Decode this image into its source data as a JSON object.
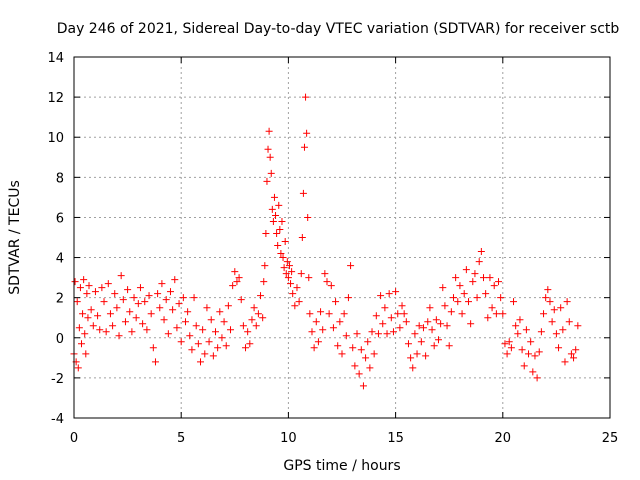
{
  "chart_data": {
    "type": "scatter",
    "title": "Day 246 of 2021, Sidereal Day-to-day VTEC variation (SDTVAR) for receiver sctb",
    "xlabel": "GPS time / hours",
    "ylabel": "SDTVAR / TECUs",
    "xlim": [
      0,
      25
    ],
    "ylim": [
      -4,
      14
    ],
    "xticks": [
      0,
      5,
      10,
      15,
      20,
      25
    ],
    "yticks": [
      -4,
      -2,
      0,
      2,
      4,
      6,
      8,
      10,
      12,
      14
    ],
    "grid": true,
    "marker": "plus",
    "color": "#ff0000",
    "series": [
      {
        "name": "sctb",
        "points": [
          [
            0.0,
            -0.8
          ],
          [
            0.05,
            2.8
          ],
          [
            0.1,
            -1.2
          ],
          [
            0.15,
            1.8
          ],
          [
            0.2,
            -1.5
          ],
          [
            0.25,
            0.5
          ],
          [
            0.3,
            2.5
          ],
          [
            0.35,
            -0.3
          ],
          [
            0.4,
            1.2
          ],
          [
            0.45,
            2.9
          ],
          [
            0.5,
            0.2
          ],
          [
            0.55,
            -0.8
          ],
          [
            0.6,
            2.2
          ],
          [
            0.65,
            1.0
          ],
          [
            0.7,
            2.6
          ],
          [
            0.8,
            1.4
          ],
          [
            0.9,
            0.6
          ],
          [
            1.0,
            2.3
          ],
          [
            1.1,
            1.1
          ],
          [
            1.2,
            0.4
          ],
          [
            1.3,
            2.5
          ],
          [
            1.4,
            1.8
          ],
          [
            1.5,
            0.3
          ],
          [
            1.6,
            2.7
          ],
          [
            1.7,
            1.2
          ],
          [
            1.8,
            0.6
          ],
          [
            1.9,
            2.2
          ],
          [
            2.0,
            1.5
          ],
          [
            2.1,
            0.1
          ],
          [
            2.2,
            3.1
          ],
          [
            2.3,
            1.9
          ],
          [
            2.4,
            0.8
          ],
          [
            2.5,
            2.4
          ],
          [
            2.6,
            1.3
          ],
          [
            2.7,
            0.3
          ],
          [
            2.8,
            2.0
          ],
          [
            2.9,
            1.0
          ],
          [
            3.0,
            1.7
          ],
          [
            3.1,
            2.5
          ],
          [
            3.2,
            0.7
          ],
          [
            3.3,
            1.8
          ],
          [
            3.4,
            0.4
          ],
          [
            3.5,
            2.1
          ],
          [
            3.6,
            1.2
          ],
          [
            3.7,
            -0.5
          ],
          [
            3.8,
            -1.2
          ],
          [
            3.9,
            2.2
          ],
          [
            4.0,
            1.5
          ],
          [
            4.1,
            2.7
          ],
          [
            4.2,
            0.9
          ],
          [
            4.3,
            1.9
          ],
          [
            4.4,
            0.2
          ],
          [
            4.5,
            2.3
          ],
          [
            4.6,
            1.4
          ],
          [
            4.7,
            2.9
          ],
          [
            4.8,
            0.5
          ],
          [
            4.9,
            1.7
          ],
          [
            5.0,
            -0.2
          ],
          [
            5.1,
            2.0
          ],
          [
            5.2,
            0.8
          ],
          [
            5.3,
            1.3
          ],
          [
            5.4,
            0.1
          ],
          [
            5.5,
            -0.6
          ],
          [
            5.6,
            2.0
          ],
          [
            5.7,
            0.6
          ],
          [
            5.8,
            -0.3
          ],
          [
            5.9,
            -1.2
          ],
          [
            6.0,
            0.4
          ],
          [
            6.1,
            -0.8
          ],
          [
            6.2,
            1.5
          ],
          [
            6.3,
            -0.2
          ],
          [
            6.4,
            0.9
          ],
          [
            6.5,
            -0.9
          ],
          [
            6.6,
            0.3
          ],
          [
            6.7,
            -0.5
          ],
          [
            6.8,
            1.3
          ],
          [
            6.9,
            0.0
          ],
          [
            7.0,
            0.8
          ],
          [
            7.1,
            -0.4
          ],
          [
            7.2,
            1.6
          ],
          [
            7.3,
            0.4
          ],
          [
            7.4,
            2.6
          ],
          [
            7.5,
            3.3
          ],
          [
            7.6,
            2.8
          ],
          [
            7.7,
            3.0
          ],
          [
            7.8,
            1.9
          ],
          [
            7.9,
            0.6
          ],
          [
            8.0,
            -0.5
          ],
          [
            8.1,
            0.3
          ],
          [
            8.2,
            -0.3
          ],
          [
            8.3,
            0.9
          ],
          [
            8.4,
            1.5
          ],
          [
            8.5,
            0.6
          ],
          [
            8.6,
            1.2
          ],
          [
            8.7,
            2.1
          ],
          [
            8.8,
            1.0
          ],
          [
            8.85,
            2.8
          ],
          [
            8.9,
            3.6
          ],
          [
            8.95,
            5.2
          ],
          [
            9.0,
            7.8
          ],
          [
            9.05,
            9.4
          ],
          [
            9.1,
            10.3
          ],
          [
            9.15,
            9.0
          ],
          [
            9.2,
            8.2
          ],
          [
            9.25,
            6.4
          ],
          [
            9.3,
            5.8
          ],
          [
            9.35,
            7.0
          ],
          [
            9.4,
            6.1
          ],
          [
            9.45,
            5.2
          ],
          [
            9.5,
            4.6
          ],
          [
            9.55,
            6.6
          ],
          [
            9.6,
            5.4
          ],
          [
            9.65,
            4.2
          ],
          [
            9.7,
            5.8
          ],
          [
            9.75,
            4.0
          ],
          [
            9.8,
            3.5
          ],
          [
            9.85,
            4.8
          ],
          [
            9.9,
            3.2
          ],
          [
            9.95,
            3.8
          ],
          [
            10.0,
            3.0
          ],
          [
            10.05,
            3.6
          ],
          [
            10.1,
            2.7
          ],
          [
            10.15,
            3.3
          ],
          [
            10.2,
            2.2
          ],
          [
            10.3,
            1.6
          ],
          [
            10.4,
            2.5
          ],
          [
            10.5,
            1.8
          ],
          [
            10.6,
            3.2
          ],
          [
            10.65,
            5.0
          ],
          [
            10.7,
            7.2
          ],
          [
            10.75,
            9.5
          ],
          [
            10.8,
            12.0
          ],
          [
            10.85,
            10.2
          ],
          [
            10.9,
            6.0
          ],
          [
            10.95,
            3.0
          ],
          [
            11.0,
            1.2
          ],
          [
            11.1,
            0.3
          ],
          [
            11.2,
            -0.5
          ],
          [
            11.3,
            0.8
          ],
          [
            11.4,
            -0.2
          ],
          [
            11.5,
            1.3
          ],
          [
            11.6,
            0.4
          ],
          [
            11.7,
            3.2
          ],
          [
            11.8,
            2.8
          ],
          [
            11.9,
            1.2
          ],
          [
            12.0,
            2.6
          ],
          [
            12.1,
            0.5
          ],
          [
            12.2,
            1.8
          ],
          [
            12.3,
            -0.4
          ],
          [
            12.4,
            0.8
          ],
          [
            12.5,
            -0.8
          ],
          [
            12.6,
            1.2
          ],
          [
            12.7,
            0.1
          ],
          [
            12.8,
            2.0
          ],
          [
            12.9,
            3.6
          ],
          [
            13.0,
            -0.5
          ],
          [
            13.1,
            -1.4
          ],
          [
            13.2,
            0.2
          ],
          [
            13.3,
            -1.8
          ],
          [
            13.4,
            -0.6
          ],
          [
            13.5,
            -2.4
          ],
          [
            13.6,
            -1.0
          ],
          [
            13.7,
            -0.2
          ],
          [
            13.8,
            -1.5
          ],
          [
            13.9,
            0.3
          ],
          [
            14.0,
            -0.8
          ],
          [
            14.1,
            1.1
          ],
          [
            14.2,
            0.2
          ],
          [
            14.3,
            2.1
          ],
          [
            14.4,
            0.7
          ],
          [
            14.5,
            1.5
          ],
          [
            14.6,
            0.2
          ],
          [
            14.7,
            2.2
          ],
          [
            14.8,
            1.0
          ],
          [
            14.9,
            0.3
          ],
          [
            15.0,
            2.3
          ],
          [
            15.1,
            1.2
          ],
          [
            15.2,
            0.5
          ],
          [
            15.3,
            1.6
          ],
          [
            15.4,
            1.2
          ],
          [
            15.5,
            0.8
          ],
          [
            15.6,
            -0.3
          ],
          [
            15.7,
            -1.0
          ],
          [
            15.8,
            -1.5
          ],
          [
            15.9,
            0.2
          ],
          [
            16.0,
            -0.8
          ],
          [
            16.1,
            0.6
          ],
          [
            16.2,
            -0.2
          ],
          [
            16.3,
            0.5
          ],
          [
            16.4,
            -0.9
          ],
          [
            16.5,
            0.8
          ],
          [
            16.6,
            1.5
          ],
          [
            16.7,
            0.4
          ],
          [
            16.8,
            -0.4
          ],
          [
            16.9,
            0.9
          ],
          [
            17.0,
            -0.1
          ],
          [
            17.1,
            0.7
          ],
          [
            17.2,
            2.5
          ],
          [
            17.3,
            1.6
          ],
          [
            17.4,
            0.6
          ],
          [
            17.5,
            -0.4
          ],
          [
            17.6,
            1.3
          ],
          [
            17.7,
            2.0
          ],
          [
            17.8,
            3.0
          ],
          [
            17.9,
            1.8
          ],
          [
            18.0,
            2.6
          ],
          [
            18.1,
            1.2
          ],
          [
            18.2,
            2.2
          ],
          [
            18.3,
            3.4
          ],
          [
            18.4,
            1.8
          ],
          [
            18.5,
            0.7
          ],
          [
            18.6,
            2.8
          ],
          [
            18.7,
            3.2
          ],
          [
            18.8,
            2.0
          ],
          [
            18.9,
            3.8
          ],
          [
            19.0,
            4.3
          ],
          [
            19.1,
            3.0
          ],
          [
            19.2,
            2.2
          ],
          [
            19.3,
            1.0
          ],
          [
            19.4,
            3.0
          ],
          [
            19.5,
            1.5
          ],
          [
            19.6,
            2.6
          ],
          [
            19.7,
            1.2
          ],
          [
            19.8,
            2.8
          ],
          [
            19.9,
            2.0
          ],
          [
            20.0,
            1.2
          ],
          [
            20.1,
            -0.3
          ],
          [
            20.2,
            -0.8
          ],
          [
            20.3,
            -0.2
          ],
          [
            20.4,
            -0.5
          ],
          [
            20.5,
            1.8
          ],
          [
            20.6,
            0.6
          ],
          [
            20.7,
            0.2
          ],
          [
            20.8,
            0.9
          ],
          [
            20.9,
            -0.6
          ],
          [
            21.0,
            -1.4
          ],
          [
            21.1,
            0.4
          ],
          [
            21.2,
            -0.8
          ],
          [
            21.3,
            -0.2
          ],
          [
            21.4,
            -1.7
          ],
          [
            21.5,
            -0.9
          ],
          [
            21.6,
            -2.0
          ],
          [
            21.7,
            -0.7
          ],
          [
            21.8,
            0.3
          ],
          [
            21.9,
            1.2
          ],
          [
            22.0,
            2.0
          ],
          [
            22.1,
            2.4
          ],
          [
            22.2,
            1.8
          ],
          [
            22.3,
            0.8
          ],
          [
            22.4,
            1.4
          ],
          [
            22.5,
            0.2
          ],
          [
            22.6,
            -0.5
          ],
          [
            22.7,
            1.5
          ],
          [
            22.8,
            0.4
          ],
          [
            22.9,
            -1.2
          ],
          [
            23.0,
            1.8
          ],
          [
            23.1,
            0.8
          ],
          [
            23.2,
            -0.8
          ],
          [
            23.3,
            -1.0
          ],
          [
            23.4,
            -0.6
          ],
          [
            23.5,
            0.6
          ]
        ]
      }
    ]
  }
}
